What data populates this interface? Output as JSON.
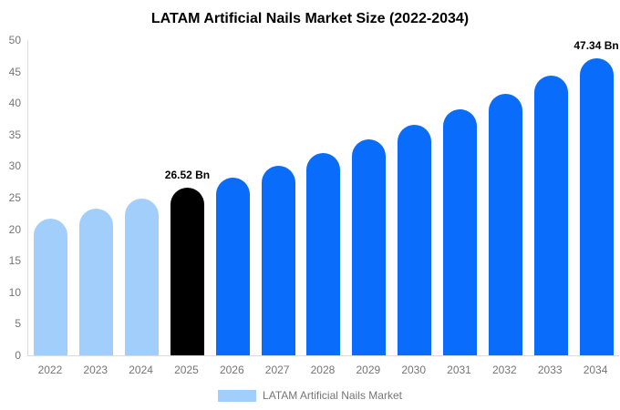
{
  "chart_data": {
    "type": "bar",
    "title": "LATAM Artificial Nails Market Size (2022-2034)",
    "xlabel": "",
    "ylabel": "",
    "categories": [
      "2022",
      "2023",
      "2024",
      "2025",
      "2026",
      "2027",
      "2028",
      "2029",
      "2030",
      "2031",
      "2032",
      "2033",
      "2034"
    ],
    "values": [
      21.7,
      23.3,
      24.8,
      26.52,
      28.2,
      30.1,
      32.1,
      34.3,
      36.5,
      39.0,
      41.5,
      44.3,
      47.34
    ],
    "bar_labels": [
      "",
      "",
      "",
      "26.52 Bn",
      "",
      "",
      "",
      "",
      "",
      "",
      "",
      "",
      "47.34 Bn"
    ],
    "bar_colors": [
      "#A2CEFC",
      "#A2CEFC",
      "#A2CEFC",
      "#000000",
      "#0A6CFA",
      "#0A6CFA",
      "#0A6CFA",
      "#0A6CFA",
      "#0A6CFA",
      "#0A6CFA",
      "#0A6CFA",
      "#0A6CFA",
      "#0A6CFA"
    ],
    "ylim": [
      0,
      50
    ],
    "yticks": [
      0,
      5,
      10,
      15,
      20,
      25,
      30,
      35,
      40,
      45,
      50
    ],
    "grid": false,
    "legend": {
      "position": "bottom",
      "entries": [
        {
          "label": "LATAM Artificial Nails Market",
          "color": "#A2CEFC"
        }
      ]
    }
  },
  "style_colors": {
    "background": "#ffffff",
    "axis_line": "#dcdcdc",
    "tick_text": "#757575",
    "title_text": "#000000",
    "value_label_text": "#000000"
  }
}
